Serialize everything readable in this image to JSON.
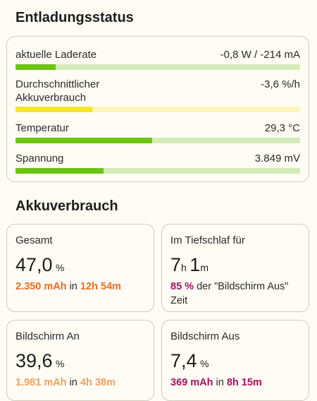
{
  "discharge_status": {
    "title": "Entladungsstatus",
    "rows": [
      {
        "label": "aktuelle Laderate",
        "value": "-0,8 W / -214 mA",
        "fill_fraction": 0.14,
        "fill_color": "#6cc414",
        "track_color": "#d4ecb8"
      },
      {
        "label": "Durchschnittlicher Akkuverbrauch",
        "value": "-3,6 %/h",
        "fill_fraction": 0.27,
        "fill_color": "#f5e626",
        "track_color": "#fbf5bc"
      },
      {
        "label": "Temperatur",
        "value": "29,3 °C",
        "fill_fraction": 0.48,
        "fill_color": "#6cc414",
        "track_color": "#d4ecb8"
      },
      {
        "label": "Spannung",
        "value": "3.849 mV",
        "fill_fraction": 0.31,
        "fill_color": "#6cc414",
        "track_color": "#d4ecb8"
      }
    ]
  },
  "battery_usage": {
    "title": "Akkuverbrauch",
    "total": {
      "label": "Gesamt",
      "value": "47,0",
      "unit": "%",
      "mah": "2.350 mAh",
      "in_word": "in",
      "duration": "12h 54m"
    },
    "deep_sleep": {
      "label": "Im Tiefschlaf für",
      "hours": "7",
      "h_unit": "h",
      "minutes": "1",
      "m_unit": "m",
      "percent": "85 %",
      "text": "der \"Bildschirm Aus\" Zeit"
    },
    "screen_on": {
      "label": "Bildschirm An",
      "value": "39,6",
      "unit": "%",
      "mah": "1.981 mAh",
      "in_word": "in",
      "duration": "4h 38m"
    },
    "screen_off": {
      "label": "Bildschirm Aus",
      "value": "7,4",
      "unit": "%",
      "mah": "369 mAh",
      "in_word": "in",
      "duration": "8h 15m"
    }
  }
}
